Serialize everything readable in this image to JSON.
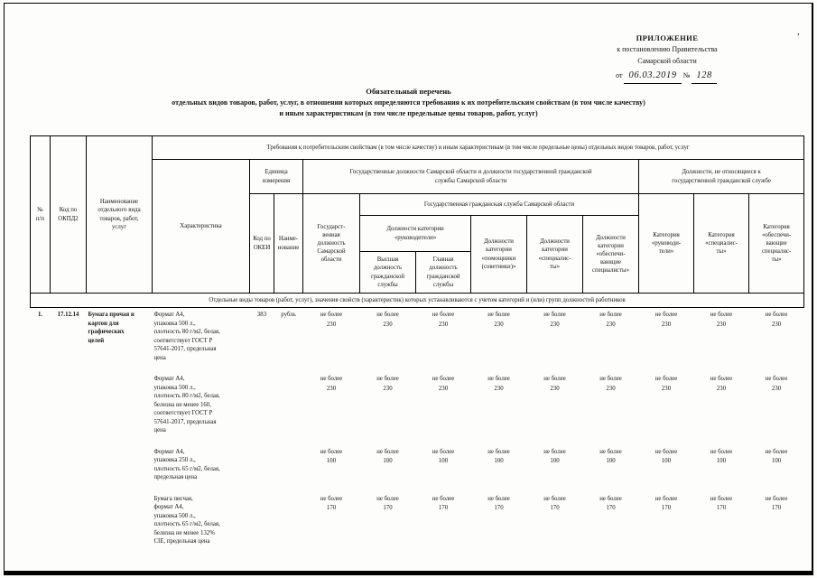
{
  "marks": {
    "corner": "’"
  },
  "appendix": {
    "line1": "ПРИЛОЖЕНИЕ",
    "line2": "к постановлению Правительства",
    "line3": "Самарской области",
    "date_prefix": "от",
    "date_value": "06.03.2019",
    "number_prefix": "№",
    "number_value": "128"
  },
  "title": {
    "line1": "Обязательный перечень",
    "line2": "отдельных видов товаров, работ, услуг, в отношении которых определяются требования к их потребительским свойствам (в том числе качеству)",
    "line3": "и иным характеристикам (в том числе предельные цены товаров, работ, услуг)"
  },
  "table": {
    "headers": {
      "col_num": "№\nп/п",
      "col_code": "Код по\nОКПД2",
      "col_name": "Наименование\nотдельного вида\nтоваров, работ,\nуслуг",
      "req_header": "Требования к потребительским свойствам (в том числе качеству) и иным характеристикам (в том числе предельные цены) отдельных видов товаров, работ, услуг",
      "col_char": "Характеристика",
      "col_unit": "Единица\nизмерения",
      "gov_header": "Государственные должности Самарской области и должности государственной гражданской\nслужбы Самарской области",
      "non_gov_header": "Должности, не относящиеся к\nгосударственной гражданской службе",
      "col_okei": "Код по\nОКЕИ",
      "col_okei_name": "Наиме-\nнование",
      "col_gov_pos": "Государст-\nвенная\nдолжность\nСамарской\nобласти",
      "civil_header": "Государственная гражданская служба Самарской области",
      "cat_ruk": "Должности категории\n«руководители»",
      "col_high": "Высшая\nдолжность\nгражданской\nслужбы",
      "col_main": "Главная\nдолжность\nгражданской\nслужбы",
      "cat_pom": "Должности\nкатегории\n«помощники\n(советники)»",
      "cat_spec": "Должности\nкатегории\n«специалис-\nты»",
      "cat_obesp": "Должности\nкатегории\n«обеспечи-\nвающие\nспециалисты»",
      "ncat_ruk": "Категория\n«руководи-\nтели»",
      "ncat_spec": "Категория\n«специалис-\nты»",
      "ncat_obesp": "Категория\n«обеспечи-\nвающие\nспециалис-\nты»"
    },
    "section_note": "Отдельные виды товаров (работ, услуг), значения свойств (характеристик) которых устанавливаются с учетом категорий и (или) групп должностей работников",
    "row": {
      "num": "1.",
      "code": "17.12.14",
      "name": "Бумага прочая и\nкартон для\nграфических\nцелей",
      "okei_code": "383",
      "okei_name": "рубль",
      "characteristics": [
        {
          "text": "Формат А4,\nупаковка 500 л.,\nплотность 80 г/м2, белая,\nсоответствует ГОСТ Р\n57641-2017, предельная\nцена",
          "limit": "не более",
          "values": [
            "230",
            "230",
            "230",
            "230",
            "230",
            "230",
            "230",
            "230",
            "230"
          ]
        },
        {
          "text": "Формат А4,\nупаковка 500 л.,\nплотность 80 г/м2, белая,\nбелизна не менее 160,\nсоответствует ГОСТ Р\n57641-2017, предельная\nцена",
          "limit": "не более",
          "values": [
            "230",
            "230",
            "230",
            "230",
            "230",
            "230",
            "230",
            "230",
            "230"
          ]
        },
        {
          "text": "Формат А4,\nупаковка 250 л.,\nплотность 65 г/м2, белая,\nпредельная цена",
          "limit": "не более",
          "values": [
            "100",
            "100",
            "100",
            "100",
            "100",
            "100",
            "100",
            "100",
            "100"
          ]
        },
        {
          "text": "Бумага писчая,\nформат А4,\nупаковка 500 л.,\nплотность 65 г/м2, белая,\nбелизна не менее 132%\nCIE, предельная цена",
          "limit": "не более",
          "values": [
            "170",
            "170",
            "170",
            "170",
            "170",
            "170",
            "170",
            "170",
            "170"
          ]
        }
      ]
    }
  }
}
